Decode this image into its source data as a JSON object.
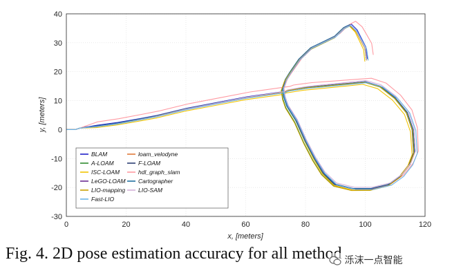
{
  "figure": {
    "caption": "Fig. 4. 2D pose estimation accuracy for all method",
    "watermark_text": "泺沫一点智能"
  },
  "chart_data": {
    "type": "line",
    "xlabel": "x, [meters]",
    "ylabel": "y, [meters]",
    "xlim": [
      0,
      120
    ],
    "ylim": [
      -30,
      40
    ],
    "xticks": [
      0,
      20,
      40,
      60,
      80,
      100,
      120
    ],
    "yticks": [
      -30,
      -20,
      -10,
      0,
      10,
      20,
      30,
      40
    ],
    "grid": true,
    "legend_position": "lower-left",
    "series": [
      {
        "name": "BLAM",
        "color": "#1f1fc8",
        "dx": 0.3,
        "dy": 0.5
      },
      {
        "name": "loam_velodyne",
        "color": "#e07a3a",
        "dx": -0.2,
        "dy": 0.2
      },
      {
        "name": "A-LOAM",
        "color": "#2e8b2e",
        "dx": -0.6,
        "dy": -0.5
      },
      {
        "name": "F-LOAM",
        "color": "#2c3e73",
        "dx": -0.4,
        "dy": 0.0
      },
      {
        "name": "ISC-LOAM",
        "color": "#f2c400",
        "dx": -0.9,
        "dy": -0.9
      },
      {
        "name": "hdl_graph_slam",
        "color": "#ff9aa2",
        "dx": 2.2,
        "dy": 2.0
      },
      {
        "name": "LeGO-LOAM",
        "color": "#6a2c91",
        "dx": 0.0,
        "dy": 0.0
      },
      {
        "name": "Cartographer",
        "color": "#1f6f9f",
        "dx": -0.3,
        "dy": 0.3
      },
      {
        "name": "LIO-mapping",
        "color": "#c8a000",
        "dx": -0.7,
        "dy": -0.6
      },
      {
        "name": "LIO-SAM",
        "color": "#d4b0d8",
        "dx": 0.4,
        "dy": 0.6
      },
      {
        "name": "Fast-LIO",
        "color": "#6ab4e8",
        "dx": 0.9,
        "dy": -0.3
      }
    ],
    "path": {
      "x": [
        0,
        3,
        4.5,
        10,
        17,
        25,
        30,
        40,
        50,
        60,
        70,
        73,
        74,
        77,
        80,
        85,
        90,
        95,
        100,
        105,
        110,
        114,
        116,
        116.5,
        115,
        112,
        108,
        102,
        96,
        90,
        86,
        83,
        80,
        77,
        74,
        73,
        72.5,
        73.5,
        75,
        78,
        82,
        86,
        90,
        93,
        95,
        97,
        98.5,
        100,
        100.5
      ],
      "y": [
        0,
        0,
        0.5,
        1,
        2,
        3.5,
        4.5,
        7,
        9,
        11,
        12.5,
        13,
        13.5,
        14,
        14.5,
        15,
        15.5,
        16,
        16.5,
        15,
        11,
        6,
        0,
        -8,
        -12,
        -16,
        -19,
        -20.5,
        -20.5,
        -19,
        -15,
        -10,
        -4,
        3,
        8,
        11,
        14,
        17,
        19.5,
        24,
        28,
        30,
        32,
        35,
        36,
        34,
        31,
        28,
        24
      ]
    }
  },
  "legend": {
    "entries": [
      {
        "label": "BLAM",
        "color": "#1f1fc8"
      },
      {
        "label": "loam_velodyne",
        "color": "#e07a3a"
      },
      {
        "label": "A-LOAM",
        "color": "#2e8b2e"
      },
      {
        "label": "F-LOAM",
        "color": "#2c3e73"
      },
      {
        "label": "ISC-LOAM",
        "color": "#f2c400"
      },
      {
        "label": "hdl_graph_slam",
        "color": "#ff9aa2"
      },
      {
        "label": "LeGO-LOAM",
        "color": "#6a2c91"
      },
      {
        "label": "Cartographer",
        "color": "#1f6f9f"
      },
      {
        "label": "LIO-mapping",
        "color": "#c8a000"
      },
      {
        "label": "LIO-SAM",
        "color": "#d4b0d8"
      },
      {
        "label": "Fast-LIO",
        "color": "#6ab4e8"
      }
    ]
  }
}
